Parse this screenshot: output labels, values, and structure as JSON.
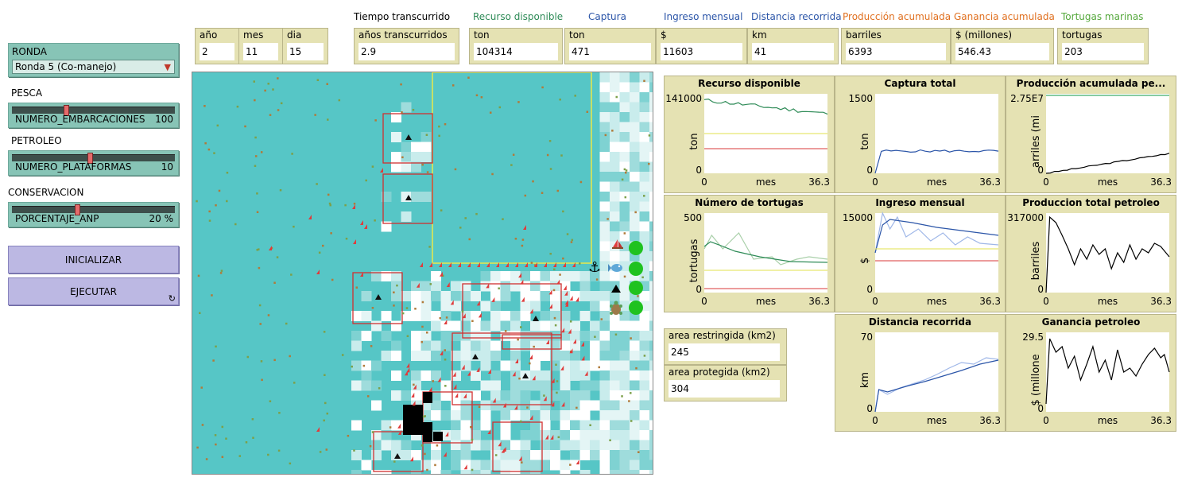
{
  "controls": {
    "ronda": {
      "label": "RONDA",
      "value": "Ronda 5 (Co-manejo)"
    },
    "pesca": {
      "section": "PESCA",
      "name": "NUMERO_EMBARCACIONES",
      "value": "100",
      "fraction": 0.33
    },
    "petroleo": {
      "section": "PETROLEO",
      "name": "NUMERO_PLATAFORMAS",
      "value": "10",
      "fraction": 0.48
    },
    "conservacion": {
      "section": "CONSERVACION",
      "name": "PORCENTAJE_ANP",
      "value": "20 %",
      "fraction": 0.4
    },
    "inicializar": "INICIALIZAR",
    "ejecutar": "EJECUTAR",
    "forever_icon": "loop-icon"
  },
  "titles": {
    "tiempo": "Tiempo transcurrido",
    "recurso": "Recurso disponible",
    "captura": "Captura",
    "ingreso": "Ingreso mensual",
    "distancia": "Distancia recorrida",
    "produccion": "Producción acumulada",
    "ganancia": "Ganancia acumulada",
    "tortugas": "Tortugas marinas"
  },
  "title_colors": {
    "tiempo": "#000000",
    "recurso": "#2e8b57",
    "captura": "#2b55a8",
    "ingreso": "#2b55a8",
    "distancia": "#2b55a8",
    "produccion": "#e07020",
    "ganancia": "#e07020",
    "tortugas": "#55a83c"
  },
  "monitors": {
    "anio": {
      "label": "año",
      "value": "2"
    },
    "mes": {
      "label": "mes",
      "value": "11"
    },
    "dia": {
      "label": "dia",
      "value": "15"
    },
    "anios": {
      "label": "años transcurridos",
      "value": "2.9"
    },
    "recurso": {
      "label": "ton",
      "value": "104314"
    },
    "captura": {
      "label": "ton",
      "value": "471"
    },
    "ingreso": {
      "label": "$",
      "value": "11603"
    },
    "distancia": {
      "label": "km",
      "value": "41"
    },
    "produccion": {
      "label": "barriles",
      "value": "6393"
    },
    "ganancia": {
      "label": "$ (millones)",
      "value": "546.43"
    },
    "tortugas": {
      "label": "tortugas",
      "value": "203"
    },
    "area_restringida": {
      "label": "area restringida (km2)",
      "value": "245"
    },
    "area_protegida": {
      "label": "area protegida (km2)",
      "value": "304"
    }
  },
  "status_icons": [
    "boat-icon",
    "fish-icon",
    "platform-icon",
    "turtle-icon",
    "anchor-icon",
    "smiley-icon"
  ],
  "plots": {
    "recurso": {
      "title": "Recurso disponible",
      "ylabel": "ton",
      "xlabel": "mes",
      "ymax": "141000",
      "ymin": "0",
      "xmin": "0",
      "xmax": "36.3"
    },
    "captura": {
      "title": "Captura total",
      "ylabel": "ton",
      "xlabel": "mes",
      "ymax": "1500",
      "ymin": "0",
      "xmin": "0",
      "xmax": "36.3"
    },
    "produccion_acum": {
      "title": "Producción acumulada pe...",
      "ylabel": "arriles (mi",
      "xlabel": "mes",
      "ymax": "2.75E7",
      "ymin": "0",
      "xmin": "0",
      "xmax": "36.3"
    },
    "tortugas": {
      "title": "Número de tortugas",
      "ylabel": "tortugas",
      "xlabel": "mes",
      "ymax": "500",
      "ymin": "0",
      "xmin": "0",
      "xmax": "36.3"
    },
    "ingreso": {
      "title": "Ingreso mensual",
      "ylabel": "$",
      "xlabel": "mes",
      "ymax": "15000",
      "ymin": "0",
      "xmin": "0",
      "xmax": "36.3"
    },
    "produccion_total": {
      "title": "Produccion total petroleo",
      "ylabel": "barriles",
      "xlabel": "mes",
      "ymax": "317000",
      "ymin": "0",
      "xmin": "0",
      "xmax": "36.3"
    },
    "distancia": {
      "title": "Distancia recorrida",
      "ylabel": "km",
      "xlabel": "mes",
      "ymax": "70",
      "ymin": "0",
      "xmin": "0",
      "xmax": "36.3"
    },
    "ganancia": {
      "title": "Ganancia petroleo",
      "ylabel": "$ (millone",
      "xlabel": "mes",
      "ymax": "29.5",
      "ymin": "0",
      "xmin": "0",
      "xmax": "36.3"
    }
  }
}
